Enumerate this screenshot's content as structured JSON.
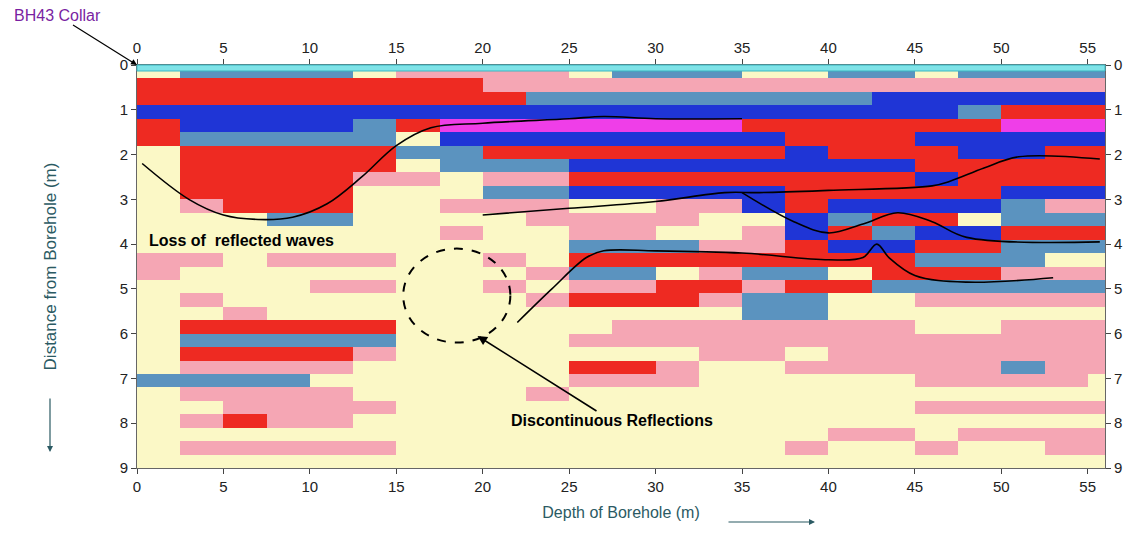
{
  "chart_data": {
    "type": "heatmap",
    "corner_label": "BH43 Collar",
    "x_label": "Depth of Borehole (m)",
    "y_label": "Distance from Borehole (m)",
    "xlim": [
      0,
      56
    ],
    "ylim": [
      0,
      9
    ],
    "xticks": [
      0,
      5,
      10,
      15,
      20,
      25,
      30,
      35,
      40,
      45,
      50,
      55
    ],
    "yticks": [
      0,
      1,
      2,
      3,
      4,
      5,
      6,
      7,
      8,
      9
    ],
    "zlim": [
      -2,
      3
    ],
    "x": [
      1.25,
      3.75,
      6.25,
      8.75,
      11.25,
      13.75,
      16.25,
      18.75,
      21.25,
      23.75,
      26.25,
      28.75,
      31.25,
      33.75,
      36.25,
      38.75,
      41.25,
      43.75,
      46.25,
      48.75,
      51.25,
      53.75,
      56.25
    ],
    "y": [
      0.15,
      0.45,
      0.75,
      1.05,
      1.35,
      1.65,
      1.95,
      2.25,
      2.55,
      2.85,
      3.15,
      3.45,
      3.75,
      4.05,
      4.35,
      4.65,
      4.95,
      5.25,
      5.55,
      5.85,
      6.15,
      6.45,
      6.75,
      7.05,
      7.35,
      7.65,
      7.95,
      8.25,
      8.55,
      8.85
    ],
    "cells": [
      [
        0,
        -1,
        -1,
        -1,
        -1,
        0,
        1,
        1,
        1,
        1,
        0,
        -1,
        -1,
        -1,
        0,
        0,
        -1,
        -1,
        0,
        -1,
        -1,
        -1,
        -1
      ],
      [
        2,
        2,
        2,
        2,
        2,
        2,
        2,
        2,
        1,
        1,
        1,
        1,
        1,
        1,
        1,
        1,
        1,
        1,
        1,
        1,
        1,
        1,
        1
      ],
      [
        2,
        2,
        2,
        2,
        2,
        2,
        2,
        2,
        2,
        -1,
        -1,
        -1,
        -1,
        -1,
        -1,
        -1,
        -1,
        -2,
        -2,
        -2,
        -2,
        -2,
        -2
      ],
      [
        -2,
        -2,
        -2,
        -2,
        -2,
        -2,
        -2,
        -2,
        -2,
        -2,
        -2,
        -2,
        -2,
        -2,
        -2,
        -2,
        -2,
        -2,
        -2,
        -1,
        2,
        2,
        2
      ],
      [
        2,
        -2,
        -2,
        -2,
        -2,
        -1,
        2,
        3,
        3,
        3,
        3,
        3,
        3,
        3,
        2,
        2,
        2,
        2,
        2,
        2,
        3,
        3,
        3
      ],
      [
        2,
        -1,
        -1,
        -1,
        -1,
        -1,
        0,
        -2,
        -2,
        -2,
        -2,
        -2,
        -2,
        -2,
        -2,
        2,
        2,
        2,
        -2,
        -2,
        -2,
        -2,
        -2
      ],
      [
        0,
        2,
        2,
        2,
        2,
        2,
        -1,
        -1,
        2,
        2,
        2,
        2,
        2,
        2,
        2,
        -2,
        2,
        2,
        2,
        -2,
        -2,
        2,
        2
      ],
      [
        0,
        2,
        2,
        2,
        2,
        2,
        0,
        -1,
        -1,
        -1,
        -2,
        -2,
        -2,
        -2,
        -2,
        -2,
        -2,
        -2,
        2,
        2,
        2,
        2,
        2
      ],
      [
        0,
        2,
        2,
        2,
        2,
        1,
        1,
        0,
        1,
        1,
        2,
        2,
        2,
        2,
        2,
        2,
        2,
        2,
        -2,
        2,
        2,
        2,
        2
      ],
      [
        0,
        2,
        2,
        2,
        2,
        0,
        0,
        0,
        -1,
        -1,
        -2,
        -2,
        -2,
        -2,
        -2,
        2,
        2,
        2,
        2,
        2,
        -2,
        -2,
        -2
      ],
      [
        0,
        1,
        2,
        2,
        2,
        0,
        0,
        1,
        1,
        1,
        0,
        0,
        1,
        1,
        -2,
        2,
        -2,
        -2,
        -2,
        -2,
        -1,
        1,
        1
      ],
      [
        0,
        0,
        0,
        -1,
        -1,
        0,
        0,
        0,
        0,
        1,
        1,
        1,
        1,
        0,
        0,
        -2,
        -1,
        2,
        2,
        0,
        -1,
        -1,
        -1
      ],
      [
        0,
        0,
        0,
        0,
        0,
        0,
        0,
        1,
        0,
        0,
        1,
        1,
        0,
        0,
        1,
        -2,
        2,
        -1,
        -2,
        -2,
        2,
        2,
        2
      ],
      [
        0,
        0,
        0,
        0,
        0,
        0,
        0,
        0,
        0,
        0,
        -1,
        -1,
        -1,
        1,
        1,
        2,
        -2,
        -2,
        2,
        2,
        -1,
        -1,
        -1
      ],
      [
        1,
        1,
        0,
        1,
        1,
        1,
        0,
        0,
        1,
        0,
        2,
        2,
        2,
        2,
        2,
        2,
        2,
        2,
        -1,
        -1,
        -1,
        0,
        0
      ],
      [
        1,
        0,
        0,
        0,
        0,
        0,
        0,
        0,
        0,
        1,
        -1,
        -1,
        0,
        1,
        -1,
        -1,
        0,
        2,
        2,
        2,
        1,
        1,
        1
      ],
      [
        0,
        0,
        0,
        0,
        1,
        1,
        0,
        0,
        1,
        0,
        1,
        1,
        2,
        2,
        1,
        2,
        2,
        -1,
        -1,
        -1,
        -1,
        -1,
        -1
      ],
      [
        0,
        1,
        0,
        0,
        0,
        0,
        0,
        0,
        0,
        1,
        2,
        2,
        2,
        1,
        -1,
        -1,
        0,
        0,
        1,
        1,
        1,
        1,
        1
      ],
      [
        0,
        0,
        1,
        0,
        0,
        0,
        0,
        0,
        0,
        0,
        0,
        0,
        0,
        0,
        -1,
        -1,
        0,
        0,
        0,
        0,
        0,
        0,
        0
      ],
      [
        0,
        2,
        2,
        2,
        2,
        2,
        0,
        0,
        0,
        0,
        0,
        1,
        1,
        1,
        1,
        1,
        1,
        1,
        0,
        0,
        1,
        1,
        1
      ],
      [
        0,
        -1,
        -1,
        -1,
        -1,
        -1,
        0,
        0,
        0,
        0,
        1,
        1,
        1,
        1,
        1,
        1,
        1,
        1,
        1,
        1,
        1,
        1,
        1
      ],
      [
        0,
        2,
        2,
        2,
        2,
        1,
        0,
        0,
        0,
        0,
        0,
        0,
        0,
        1,
        1,
        0,
        1,
        1,
        1,
        1,
        1,
        1,
        1
      ],
      [
        0,
        1,
        1,
        1,
        1,
        0,
        0,
        0,
        0,
        0,
        2,
        2,
        1,
        0,
        0,
        1,
        1,
        1,
        1,
        1,
        -1,
        1,
        1
      ],
      [
        -1,
        -1,
        -1,
        -1,
        0,
        0,
        0,
        0,
        0,
        0,
        1,
        1,
        1,
        0,
        0,
        0,
        0,
        0,
        1,
        1,
        1,
        1,
        0
      ],
      [
        0,
        1,
        1,
        1,
        1,
        0,
        0,
        0,
        0,
        1,
        0,
        0,
        0,
        0,
        0,
        0,
        0,
        0,
        0,
        0,
        0,
        0,
        0
      ],
      [
        0,
        0,
        1,
        1,
        1,
        1,
        0,
        0,
        0,
        0,
        0,
        0,
        0,
        0,
        0,
        0,
        0,
        0,
        1,
        1,
        1,
        1,
        1
      ],
      [
        0,
        1,
        2,
        1,
        1,
        0,
        0,
        0,
        0,
        0,
        0,
        0,
        0,
        0,
        0,
        0,
        0,
        0,
        0,
        0,
        0,
        0,
        0
      ],
      [
        0,
        0,
        0,
        0,
        0,
        0,
        0,
        0,
        0,
        0,
        0,
        0,
        0,
        0,
        0,
        0,
        1,
        1,
        0,
        1,
        1,
        1,
        1
      ],
      [
        0,
        1,
        1,
        1,
        1,
        1,
        0,
        0,
        0,
        0,
        0,
        0,
        0,
        0,
        0,
        1,
        0,
        0,
        1,
        0,
        0,
        1,
        1
      ],
      [
        0,
        0,
        0,
        0,
        0,
        0,
        0,
        0,
        0,
        0,
        0,
        0,
        0,
        0,
        0,
        0,
        0,
        0,
        0,
        0,
        0,
        0,
        0
      ]
    ],
    "lines": [
      {
        "color": "#000000",
        "x": [
          0.3,
          3,
          5,
          7,
          9,
          11,
          13,
          15,
          17,
          20,
          25,
          27,
          30,
          35
        ],
        "y": [
          2.2,
          3.0,
          3.35,
          3.45,
          3.4,
          3.1,
          2.5,
          1.8,
          1.4,
          1.3,
          1.2,
          1.15,
          1.2,
          1.2
        ]
      },
      {
        "color": "#000000",
        "x": [
          20,
          25,
          30,
          34,
          36,
          40,
          46,
          47,
          49,
          51,
          55.7
        ],
        "y": [
          3.35,
          3.2,
          3.05,
          2.85,
          2.85,
          2.8,
          2.7,
          2.6,
          2.3,
          2.05,
          2.1
        ]
      },
      {
        "color": "#000000",
        "x": [
          35,
          38,
          40,
          42,
          44,
          46,
          48,
          55.7
        ],
        "y": [
          2.85,
          3.5,
          3.75,
          3.55,
          3.3,
          3.5,
          3.85,
          3.95
        ]
      },
      {
        "color": "#000000",
        "x": [
          22,
          24,
          26,
          27,
          30,
          35,
          40,
          42,
          42.8,
          43.5,
          45,
          48,
          53
        ],
        "y": [
          5.75,
          5.0,
          4.3,
          4.15,
          4.15,
          4.2,
          4.35,
          4.3,
          4.0,
          4.3,
          4.7,
          4.85,
          4.75
        ]
      }
    ],
    "circle": {
      "x0": 15.4,
      "x1": 21.6,
      "y0": 4.1,
      "y1": 6.2,
      "line_style": "dash"
    },
    "annotations": [
      {
        "text": "Loss of  reflected waves",
        "x": 0.6,
        "y": 3.92
      },
      {
        "text": "Discontinuous Reflections",
        "x": 27.5,
        "y": 7.95,
        "arrow_x": 19.7,
        "arrow_y": 6.05
      }
    ]
  }
}
